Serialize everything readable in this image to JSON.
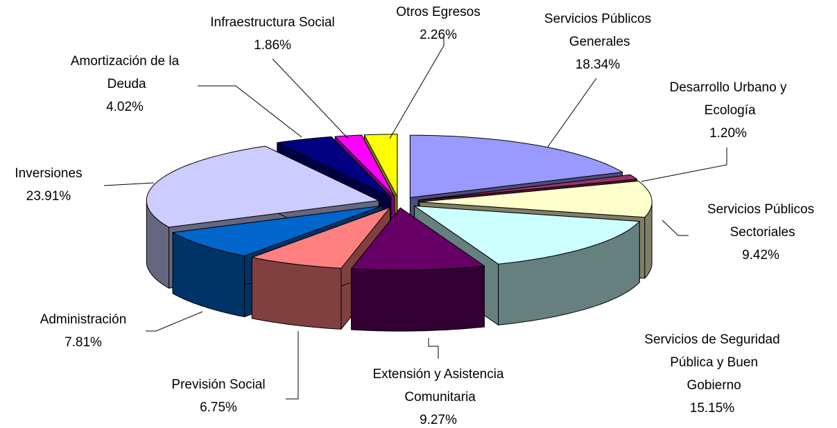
{
  "chart_data": {
    "type": "pie3d",
    "categories": [
      "Servicios Públicos Generales",
      "Desarrollo Urbano y Ecología",
      "Servicios Públicos Sectoriales",
      "Servicios de Seguridad Pública y Buen Gobierno",
      "Extensión y Asistencia Comunitaria",
      "Previsión Social",
      "Administración",
      "Inversiones",
      "Amortización de la Deuda",
      "Infraestructura Social",
      "Otros Egresos"
    ],
    "values": [
      18.34,
      1.2,
      9.42,
      15.15,
      9.27,
      6.75,
      7.81,
      23.91,
      4.02,
      1.86,
      2.26
    ],
    "value_labels": [
      "18.34%",
      "1.20%",
      "9.42%",
      "15.15%",
      "9.27%",
      "6.75%",
      "7.81%",
      "23.91%",
      "4.02%",
      "1.86%",
      "2.26%"
    ],
    "colors": [
      "#9999ff",
      "#993366",
      "#ffffcc",
      "#ccffff",
      "#660066",
      "#ff8080",
      "#0066cc",
      "#ccccff",
      "#000080",
      "#ff00ff",
      "#ffff00"
    ]
  }
}
